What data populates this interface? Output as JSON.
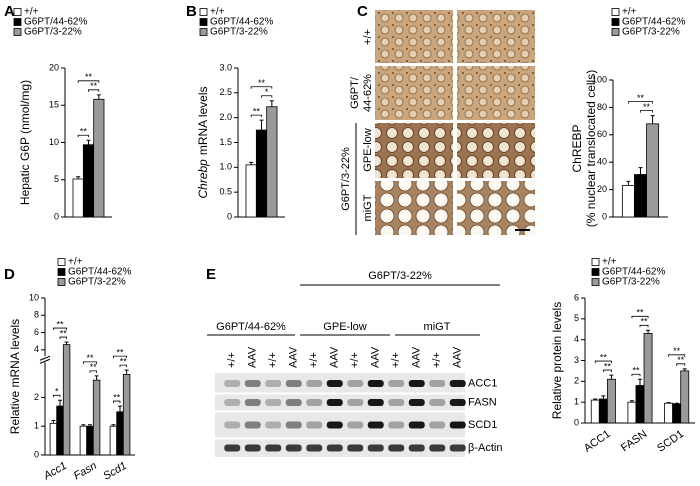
{
  "panels": [
    "A",
    "B",
    "C",
    "D",
    "E"
  ],
  "micrograph": {
    "row_labels": [
      "+/+",
      "G6PT/",
      "44-62%",
      "GPE-low",
      "miGT"
    ],
    "group_label": "G6PT/3-22%"
  },
  "blot": {
    "groups": [
      "G6PT/44-62%",
      "GPE-low",
      "miGT"
    ],
    "supergroup": "G6PT/3-22%",
    "lanes": [
      "+/+",
      "AAV",
      "+/+",
      "AAV",
      "+/+",
      "AAV",
      "+/+",
      "AAV",
      "+/+",
      "AAV",
      "+/+",
      "AAV"
    ],
    "proteins": [
      "ACC1",
      "FASN",
      "SCD1",
      "β-Actin"
    ]
  },
  "chart_data": [
    {
      "type": "bar",
      "ylabel": [
        "Hepatic G6P (nmol/mg)"
      ],
      "categories": [
        null
      ],
      "series": [
        {
          "name": "+/+",
          "color": "#ffffff",
          "values": [
            5.1
          ],
          "errors": [
            0.3
          ]
        },
        {
          "name": "G6PT/44-62%",
          "color": "#000000",
          "values": [
            9.7
          ],
          "errors": [
            0.6
          ]
        },
        {
          "name": "G6PT/3-22%",
          "color": "#9a9a9a",
          "values": [
            15.8
          ],
          "errors": [
            0.6
          ]
        }
      ],
      "annotations": [
        [
          "**",
          "**",
          "**"
        ]
      ],
      "ylim": [
        0,
        20
      ],
      "yticks": [
        0,
        5,
        10,
        15,
        20
      ]
    },
    {
      "type": "bar",
      "ylabel_italic": "Chrebp",
      "ylabel": [
        "mRNA levels"
      ],
      "categories": [
        null
      ],
      "series": [
        {
          "name": "+/+",
          "color": "#ffffff",
          "values": [
            1.05
          ],
          "errors": [
            0.05
          ]
        },
        {
          "name": "G6PT/44-62%",
          "color": "#000000",
          "values": [
            1.75
          ],
          "errors": [
            0.2
          ]
        },
        {
          "name": "G6PT/3-22%",
          "color": "#9a9a9a",
          "values": [
            2.22
          ],
          "errors": [
            0.12
          ]
        }
      ],
      "annotations": [
        [
          "**",
          "*",
          "**"
        ]
      ],
      "ylim": [
        0,
        3
      ],
      "yticks": [
        0,
        0.5,
        {
          "value": 1,
          "label": "1.0"
        },
        1.5,
        {
          "value": 2,
          "label": "2.0"
        },
        2.5,
        {
          "value": 3,
          "label": "3.0"
        }
      ]
    },
    {
      "type": "bar",
      "ylabel": [
        "ChREBP",
        "(% nuclear translocated cells)"
      ],
      "categories": [
        null
      ],
      "series": [
        {
          "name": "+/+",
          "color": "#ffffff",
          "values": [
            23
          ],
          "errors": [
            3
          ]
        },
        {
          "name": "G6PT/44-62%",
          "color": "#000000",
          "values": [
            31
          ],
          "errors": [
            5
          ]
        },
        {
          "name": "G6PT/3-22%",
          "color": "#9a9a9a",
          "values": [
            68
          ],
          "errors": [
            6
          ]
        }
      ],
      "annotations": [
        [
          null,
          "**",
          "**"
        ]
      ],
      "ylim": [
        0,
        100
      ],
      "yticks": [
        0,
        20,
        40,
        60,
        80,
        100
      ]
    },
    {
      "type": "bar",
      "ylabel": [
        "Relative mRNA levels"
      ],
      "categories": [
        "Acc1",
        "Fasn",
        "Scd1"
      ],
      "italic_categories": true,
      "series": [
        {
          "name": "+/+",
          "color": "#ffffff",
          "values": [
            1.1,
            1.0,
            1.0
          ],
          "errors": [
            0.1,
            0.05,
            0.05
          ]
        },
        {
          "name": "G6PT/44-62%",
          "color": "#000000",
          "values": [
            1.7,
            1.0,
            1.5
          ],
          "errors": [
            0.2,
            0.05,
            0.2
          ]
        },
        {
          "name": "G6PT/3-22%",
          "color": "#9a9a9a",
          "values": [
            4.6,
            2.6,
            2.8
          ],
          "errors": [
            0.3,
            0.15,
            0.15
          ]
        }
      ],
      "annotations": [
        [
          "*",
          "**",
          "**"
        ],
        [
          null,
          "**",
          "**"
        ],
        [
          "**",
          "**",
          "**"
        ]
      ],
      "ylim": [
        0,
        10
      ],
      "ybreak": [
        3,
        4
      ],
      "yticks": [
        0,
        1,
        2,
        4,
        6,
        8,
        10
      ]
    },
    {
      "type": "bar",
      "ylabel": [
        "Relative protein levels"
      ],
      "categories": [
        "ACC1",
        "FASN",
        "SCD1"
      ],
      "series": [
        {
          "name": "+/+",
          "color": "#ffffff",
          "values": [
            1.1,
            1.0,
            0.95
          ],
          "errors": [
            0.05,
            0.07,
            0.03
          ]
        },
        {
          "name": "G6PT/44-62%",
          "color": "#000000",
          "values": [
            1.15,
            1.8,
            0.92
          ],
          "errors": [
            0.15,
            0.3,
            0.03
          ]
        },
        {
          "name": "G6PT/3-22%",
          "color": "#9a9a9a",
          "values": [
            2.1,
            4.3,
            2.5
          ],
          "errors": [
            0.2,
            0.15,
            0.1
          ]
        }
      ],
      "annotations": [
        [
          null,
          "**",
          "**"
        ],
        [
          "**",
          "**",
          "**"
        ],
        [
          null,
          "**",
          "**"
        ]
      ],
      "ylim": [
        0,
        6
      ],
      "yticks": [
        0,
        1,
        2,
        3,
        4,
        5,
        6
      ]
    }
  ]
}
